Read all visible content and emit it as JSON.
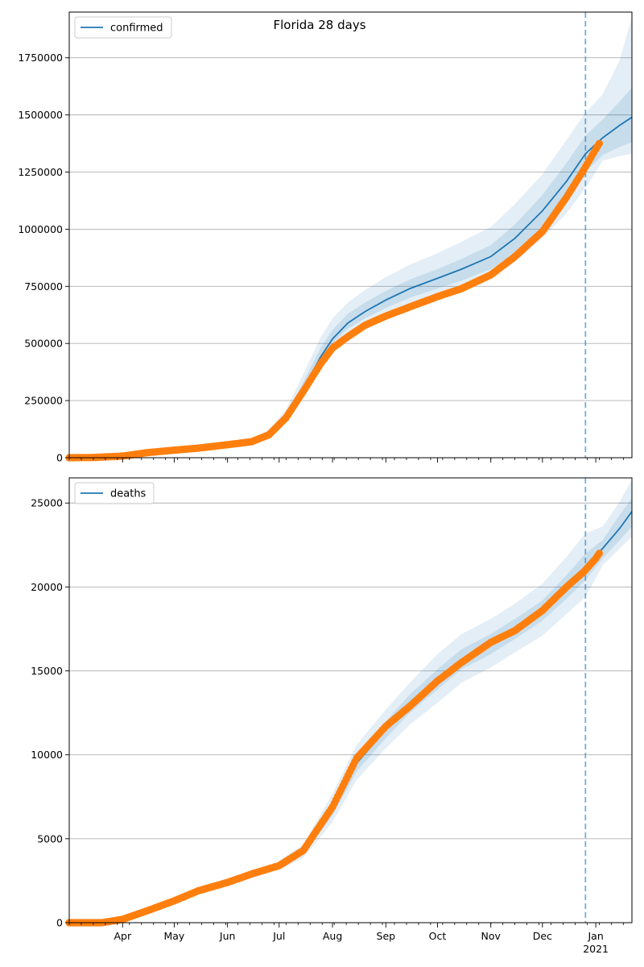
{
  "colors": {
    "line": "#1f77b4",
    "band": "#1f77b4",
    "observed": "#ff7f0e",
    "grid": "#b0b0b0",
    "forecast_line": "#1f77b4"
  },
  "chart_data": [
    {
      "type": "line",
      "title": "Florida 28 days",
      "legend": {
        "label": "confirmed",
        "placement": "top-left"
      },
      "ylim": [
        0,
        1950000
      ],
      "yticks": [
        0,
        250000,
        500000,
        750000,
        1000000,
        1250000,
        1500000,
        1750000
      ],
      "ytick_labels": [
        "0",
        "250000",
        "500000",
        "750000",
        "1000000",
        "1250000",
        "1500000",
        "1750000"
      ],
      "grid": "horizontal",
      "xlim": [
        "2020-03-01",
        "2021-01-22"
      ],
      "forecast_start": "2020-12-26",
      "model": {
        "x": [
          "2020-06-01",
          "2020-06-15",
          "2020-06-25",
          "2020-07-05",
          "2020-07-15",
          "2020-07-25",
          "2020-08-01",
          "2020-08-10",
          "2020-08-20",
          "2020-09-01",
          "2020-09-15",
          "2020-10-01",
          "2020-10-15",
          "2020-11-01",
          "2020-11-15",
          "2020-12-01",
          "2020-12-15",
          "2020-12-26",
          "2021-01-05",
          "2021-01-15",
          "2021-01-22"
        ],
        "median": [
          55000,
          70000,
          100000,
          175000,
          300000,
          440000,
          520000,
          590000,
          640000,
          690000,
          740000,
          785000,
          825000,
          880000,
          960000,
          1080000,
          1210000,
          1330000,
          1400000,
          1455000,
          1490000
        ],
        "inner_low": [
          50000,
          65000,
          92000,
          165000,
          280000,
          420000,
          500000,
          565000,
          610000,
          655000,
          700000,
          740000,
          775000,
          825000,
          895000,
          1005000,
          1120000,
          1250000,
          1325000,
          1360000,
          1380000
        ],
        "inner_high": [
          60000,
          76000,
          110000,
          190000,
          330000,
          480000,
          560000,
          630000,
          680000,
          730000,
          780000,
          825000,
          870000,
          930000,
          1020000,
          1150000,
          1290000,
          1410000,
          1480000,
          1560000,
          1620000
        ],
        "outer_low": [
          45000,
          60000,
          85000,
          155000,
          260000,
          395000,
          475000,
          540000,
          585000,
          625000,
          670000,
          710000,
          745000,
          790000,
          855000,
          960000,
          1070000,
          1180000,
          1300000,
          1320000,
          1330000
        ],
        "outer_high": [
          66000,
          84000,
          122000,
          210000,
          365000,
          525000,
          610000,
          680000,
          735000,
          790000,
          845000,
          895000,
          945000,
          1010000,
          1110000,
          1240000,
          1390000,
          1510000,
          1590000,
          1740000,
          1930000
        ]
      },
      "observed": {
        "x": [
          "2020-03-01",
          "2020-03-15",
          "2020-04-01",
          "2020-04-15",
          "2020-05-01",
          "2020-05-15",
          "2020-06-01",
          "2020-06-15",
          "2020-06-25",
          "2020-07-05",
          "2020-07-15",
          "2020-07-25",
          "2020-08-01",
          "2020-08-10",
          "2020-08-20",
          "2020-09-01",
          "2020-09-15",
          "2020-10-01",
          "2020-10-15",
          "2020-11-01",
          "2020-11-15",
          "2020-12-01",
          "2020-12-15",
          "2020-12-25",
          "2021-01-01",
          "2021-01-03"
        ],
        "y": [
          0,
          1000,
          7000,
          22000,
          33000,
          42000,
          57000,
          70000,
          100000,
          175000,
          290000,
          410000,
          480000,
          530000,
          580000,
          620000,
          660000,
          705000,
          740000,
          800000,
          880000,
          990000,
          1140000,
          1260000,
          1350000,
          1375000
        ]
      }
    },
    {
      "type": "line",
      "title": "",
      "legend": {
        "label": "deaths",
        "placement": "top-left"
      },
      "ylim": [
        0,
        26500
      ],
      "yticks": [
        0,
        5000,
        10000,
        15000,
        20000,
        25000
      ],
      "ytick_labels": [
        "0",
        "5000",
        "10000",
        "15000",
        "20000",
        "25000"
      ],
      "grid": "horizontal",
      "xlim": [
        "2020-03-01",
        "2021-01-22"
      ],
      "forecast_start": "2020-12-26",
      "xtick_labels": [
        {
          "date": "2020-04-01",
          "label": "Apr"
        },
        {
          "date": "2020-05-01",
          "label": "May"
        },
        {
          "date": "2020-06-01",
          "label": "Jun"
        },
        {
          "date": "2020-07-01",
          "label": "Jul"
        },
        {
          "date": "2020-08-01",
          "label": "Aug"
        },
        {
          "date": "2020-09-01",
          "label": "Sep"
        },
        {
          "date": "2020-10-01",
          "label": "Oct"
        },
        {
          "date": "2020-11-01",
          "label": "Nov"
        },
        {
          "date": "2020-12-01",
          "label": "Dec"
        },
        {
          "date": "2021-01-01",
          "label": "Jan"
        }
      ],
      "year_label": "2021",
      "model": {
        "x": [
          "2020-07-01",
          "2020-07-15",
          "2020-08-01",
          "2020-08-15",
          "2020-09-01",
          "2020-09-15",
          "2020-10-01",
          "2020-10-15",
          "2020-11-01",
          "2020-11-15",
          "2020-12-01",
          "2020-12-15",
          "2020-12-26",
          "2021-01-05",
          "2021-01-15",
          "2021-01-22"
        ],
        "median": [
          3400,
          4200,
          6800,
          9500,
          11500,
          13000,
          14500,
          15700,
          16600,
          17500,
          18600,
          20000,
          21200,
          22300,
          23500,
          24500
        ],
        "inner_low": [
          3300,
          4050,
          6400,
          9000,
          11000,
          12500,
          13900,
          15100,
          16000,
          16900,
          18000,
          19300,
          20400,
          21700,
          22800,
          23600
        ],
        "inner_high": [
          3550,
          4400,
          7200,
          10000,
          12000,
          13600,
          15100,
          16300,
          17200,
          18100,
          19200,
          20700,
          22000,
          22800,
          24300,
          25300
        ],
        "outer_low": [
          3150,
          3850,
          6000,
          8500,
          10400,
          11800,
          13100,
          14300,
          15200,
          16100,
          17100,
          18400,
          19400,
          21300,
          22300,
          23000
        ],
        "outer_high": [
          3700,
          4650,
          7700,
          10600,
          12700,
          14300,
          16000,
          17200,
          18100,
          19000,
          20200,
          21800,
          23200,
          23600,
          25100,
          26400
        ]
      },
      "observed": {
        "x": [
          "2020-03-01",
          "2020-03-20",
          "2020-04-01",
          "2020-04-15",
          "2020-05-01",
          "2020-05-15",
          "2020-06-01",
          "2020-06-15",
          "2020-07-01",
          "2020-07-15",
          "2020-08-01",
          "2020-08-15",
          "2020-09-01",
          "2020-09-15",
          "2020-10-01",
          "2020-10-15",
          "2020-11-01",
          "2020-11-15",
          "2020-12-01",
          "2020-12-15",
          "2020-12-25",
          "2021-01-01",
          "2021-01-03"
        ],
        "y": [
          0,
          0,
          200,
          700,
          1300,
          1900,
          2400,
          2900,
          3400,
          4300,
          6900,
          9800,
          11700,
          12900,
          14400,
          15500,
          16700,
          17400,
          18600,
          20000,
          20900,
          21700,
          22000
        ]
      }
    }
  ]
}
